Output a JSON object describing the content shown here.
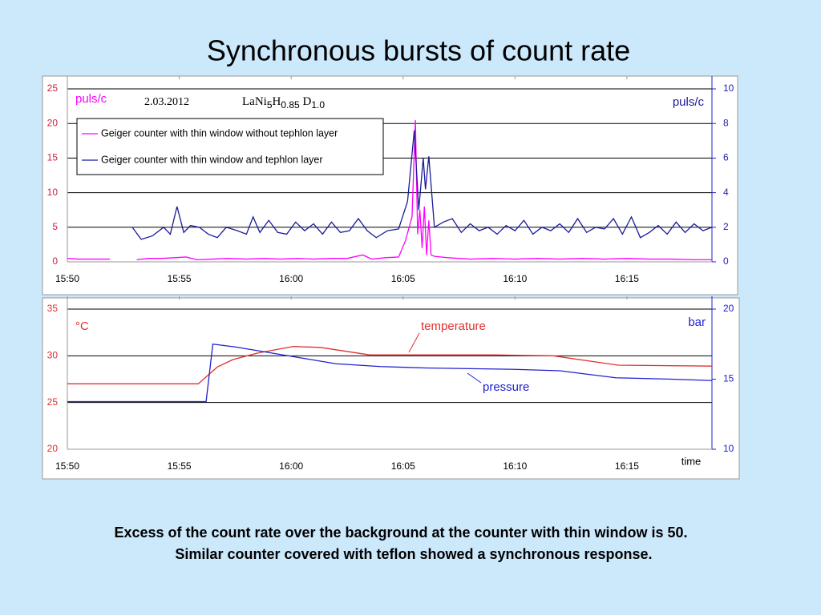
{
  "title": "Synchronous bursts of count rate",
  "caption": [
    "Excess of the count rate over the background at the counter with thin window is 50.",
    "Similar counter covered with teflon  showed a synchronous response."
  ],
  "chart_data": [
    {
      "type": "line",
      "ylabel": "puls/c",
      "y2label": "puls/c",
      "date": "2.03.2012",
      "formula": [
        "LaNi",
        "5",
        "H",
        "0.85",
        " D",
        "1.0"
      ],
      "legend": "upper left",
      "grid": true,
      "xlim": [
        950,
        978.8
      ],
      "xticks": [
        {
          "value": 950,
          "label": "15:50"
        },
        {
          "value": 955,
          "label": "15:55"
        },
        {
          "value": 960,
          "label": "16:00"
        },
        {
          "value": 965,
          "label": "16:05"
        },
        {
          "value": 970,
          "label": "16:10"
        },
        {
          "value": 975,
          "label": "16:15"
        }
      ],
      "ylim": [
        0,
        25
      ],
      "yticks": [
        0,
        5,
        10,
        15,
        20,
        25
      ],
      "y2lim": [
        0,
        10
      ],
      "y2ticks": [
        0,
        2,
        4,
        6,
        8,
        10
      ],
      "series": [
        {
          "name": "Geiger counter with thin window without tephlon  layer",
          "color": "#ff00ff",
          "x": [
            950,
            950.5,
            951,
            951.5,
            951.9,
            952.5,
            953.1,
            953.6,
            954.2,
            954.8,
            955.3,
            955.8,
            956.5,
            957.2,
            958,
            958.8,
            959.5,
            960.3,
            961,
            961.8,
            962.5,
            963.2,
            963.6,
            964.2,
            964.8,
            965.1,
            965.4,
            965.55,
            965.65,
            965.75,
            965.85,
            965.95,
            966.05,
            966.15,
            966.25,
            966.4,
            967,
            968,
            969,
            970,
            971,
            972,
            973,
            974,
            975,
            976,
            977,
            978,
            978.8
          ],
          "values": [
            0.5,
            0.4,
            0.4,
            0.4,
            0.4,
            null,
            0.3,
            0.5,
            0.5,
            0.6,
            0.7,
            0.3,
            0.4,
            0.5,
            0.4,
            0.5,
            0.4,
            0.5,
            0.4,
            0.5,
            0.5,
            1.0,
            0.4,
            0.6,
            0.7,
            3.0,
            6.5,
            20.5,
            4.0,
            7.5,
            2.0,
            8.0,
            1.0,
            6.0,
            1.0,
            0.8,
            0.6,
            0.4,
            0.5,
            0.4,
            0.5,
            0.4,
            0.5,
            0.4,
            0.5,
            0.4,
            0.4,
            0.3,
            0.3
          ]
        },
        {
          "name": "Geiger counter with thin window and  tephlon  layer",
          "color": "#1a1a9a",
          "axis": "y2",
          "x": [
            952.9,
            953.3,
            953.8,
            954.3,
            954.6,
            954.9,
            955.2,
            955.5,
            955.9,
            956.3,
            956.7,
            957.1,
            957.6,
            958,
            958.3,
            958.6,
            959,
            959.4,
            959.8,
            960.2,
            960.6,
            961,
            961.4,
            961.8,
            962.2,
            962.6,
            963,
            963.4,
            963.8,
            964.3,
            964.8,
            965.2,
            965.5,
            965.7,
            965.9,
            966.0,
            966.15,
            966.4,
            966.8,
            967.2,
            967.6,
            968,
            968.4,
            968.8,
            969.2,
            969.6,
            970,
            970.4,
            970.8,
            971.2,
            971.6,
            972,
            972.4,
            972.8,
            973.2,
            973.6,
            974,
            974.4,
            974.8,
            975.2,
            975.6,
            976,
            976.4,
            976.8,
            977.2,
            977.6,
            978,
            978.4,
            978.8
          ],
          "values": [
            2.0,
            1.3,
            1.5,
            2.0,
            1.6,
            3.2,
            1.7,
            2.1,
            2.0,
            1.6,
            1.4,
            2.0,
            1.8,
            1.6,
            2.6,
            1.7,
            2.4,
            1.7,
            1.6,
            2.3,
            1.8,
            2.2,
            1.6,
            2.3,
            1.7,
            1.8,
            2.5,
            1.8,
            1.4,
            1.8,
            1.9,
            3.5,
            7.6,
            3.0,
            6.0,
            4.2,
            6.1,
            2.0,
            2.3,
            2.5,
            1.7,
            2.2,
            1.8,
            2.0,
            1.6,
            2.1,
            1.8,
            2.4,
            1.6,
            2.0,
            1.8,
            2.2,
            1.7,
            2.5,
            1.7,
            2.0,
            1.9,
            2.5,
            1.6,
            2.6,
            1.4,
            1.7,
            2.1,
            1.6,
            2.3,
            1.7,
            2.2,
            1.8,
            2.0
          ]
        }
      ]
    },
    {
      "type": "line",
      "ylabel": "°C",
      "y2label": "bar",
      "xlabel": "time",
      "grid": true,
      "xlim": [
        950,
        978.8
      ],
      "xticks": [
        {
          "value": 950,
          "label": "15:50"
        },
        {
          "value": 955,
          "label": "15:55"
        },
        {
          "value": 960,
          "label": "16:00"
        },
        {
          "value": 965,
          "label": "16:05"
        },
        {
          "value": 970,
          "label": "16:10"
        },
        {
          "value": 975,
          "label": "16:15"
        }
      ],
      "ylim": [
        20,
        35
      ],
      "yticks": [
        20,
        25,
        30,
        35
      ],
      "y2lim": [
        10,
        20
      ],
      "y2ticks": [
        10,
        15,
        20
      ],
      "series": [
        {
          "name": "temperature",
          "color": "#e03030",
          "x": [
            950,
            955.85,
            956.7,
            957.4,
            958.5,
            960.1,
            961.3,
            963.5,
            969.0,
            971.7,
            974.6,
            978.8
          ],
          "values": [
            27,
            27,
            28.8,
            29.6,
            30.3,
            31.0,
            30.9,
            30.1,
            30.1,
            30.0,
            29.0,
            28.9
          ]
        },
        {
          "name": "pressure",
          "color": "#2020d0",
          "axis": "y2",
          "x": [
            950,
            956.2,
            956.5,
            957.5,
            959,
            960.5,
            962,
            964,
            966,
            970,
            972,
            974.5,
            977,
            978.8
          ],
          "values": [
            13.4,
            13.4,
            17.5,
            17.3,
            16.9,
            16.5,
            16.1,
            15.9,
            15.8,
            15.7,
            15.6,
            15.1,
            15.0,
            14.9
          ]
        }
      ]
    }
  ]
}
